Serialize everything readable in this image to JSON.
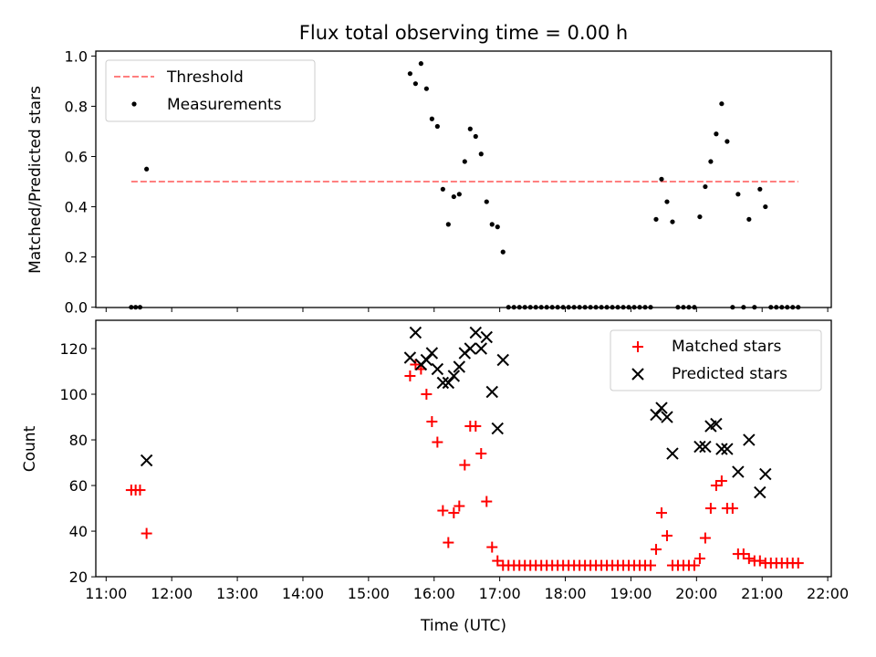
{
  "chart_data": [
    {
      "type": "scatter",
      "title": "Flux total observing time = 0.00 h",
      "xlabel": "",
      "ylabel": "Matched/Predicted stars",
      "xlim": [
        "11:00",
        "22:00"
      ],
      "ylim": [
        0,
        1.0
      ],
      "yticks": [
        "0.0",
        "0.2",
        "0.4",
        "0.6",
        "0.8",
        "1.0"
      ],
      "legend_position": "top-left",
      "threshold": {
        "name": "Threshold",
        "y": 0.5,
        "x_start": "11:23",
        "x_end": "21:33",
        "color": "#ff7f7f",
        "style": "dashed"
      },
      "series": [
        {
          "name": "Measurements",
          "marker": "dot",
          "color": "#000000",
          "points": [
            [
              "11:23",
              0.0
            ],
            [
              "11:27",
              0.0
            ],
            [
              "11:31",
              0.0
            ],
            [
              "11:37",
              0.55
            ],
            [
              "15:38",
              0.93
            ],
            [
              "15:43",
              0.89
            ],
            [
              "15:48",
              0.97
            ],
            [
              "15:53",
              0.87
            ],
            [
              "15:58",
              0.75
            ],
            [
              "16:03",
              0.72
            ],
            [
              "16:08",
              0.47
            ],
            [
              "16:13",
              0.33
            ],
            [
              "16:18",
              0.44
            ],
            [
              "16:23",
              0.45
            ],
            [
              "16:28",
              0.58
            ],
            [
              "16:33",
              0.71
            ],
            [
              "16:38",
              0.68
            ],
            [
              "16:43",
              0.61
            ],
            [
              "16:48",
              0.42
            ],
            [
              "16:53",
              0.33
            ],
            [
              "16:58",
              0.32
            ],
            [
              "17:03",
              0.22
            ],
            [
              "17:08",
              0.0
            ],
            [
              "17:13",
              0.0
            ],
            [
              "17:18",
              0.0
            ],
            [
              "17:23",
              0.0
            ],
            [
              "17:28",
              0.0
            ],
            [
              "17:33",
              0.0
            ],
            [
              "17:38",
              0.0
            ],
            [
              "17:43",
              0.0
            ],
            [
              "17:48",
              0.0
            ],
            [
              "17:53",
              0.0
            ],
            [
              "17:58",
              0.0
            ],
            [
              "18:03",
              0.0
            ],
            [
              "18:08",
              0.0
            ],
            [
              "18:13",
              0.0
            ],
            [
              "18:18",
              0.0
            ],
            [
              "18:23",
              0.0
            ],
            [
              "18:28",
              0.0
            ],
            [
              "18:33",
              0.0
            ],
            [
              "18:38",
              0.0
            ],
            [
              "18:43",
              0.0
            ],
            [
              "18:48",
              0.0
            ],
            [
              "18:53",
              0.0
            ],
            [
              "18:58",
              0.0
            ],
            [
              "19:03",
              0.0
            ],
            [
              "19:08",
              0.0
            ],
            [
              "19:13",
              0.0
            ],
            [
              "19:18",
              0.0
            ],
            [
              "19:23",
              0.35
            ],
            [
              "19:28",
              0.51
            ],
            [
              "19:33",
              0.42
            ],
            [
              "19:38",
              0.34
            ],
            [
              "19:43",
              0.0
            ],
            [
              "19:48",
              0.0
            ],
            [
              "19:53",
              0.0
            ],
            [
              "19:58",
              0.0
            ],
            [
              "20:03",
              0.36
            ],
            [
              "20:08",
              0.48
            ],
            [
              "20:13",
              0.58
            ],
            [
              "20:18",
              0.69
            ],
            [
              "20:23",
              0.81
            ],
            [
              "20:28",
              0.66
            ],
            [
              "20:33",
              0.0
            ],
            [
              "20:38",
              0.45
            ],
            [
              "20:43",
              0.0
            ],
            [
              "20:48",
              0.35
            ],
            [
              "20:53",
              0.0
            ],
            [
              "20:58",
              0.47
            ],
            [
              "21:03",
              0.4
            ],
            [
              "21:08",
              0.0
            ],
            [
              "21:13",
              0.0
            ],
            [
              "21:18",
              0.0
            ],
            [
              "21:23",
              0.0
            ],
            [
              "21:28",
              0.0
            ],
            [
              "21:33",
              0.0
            ]
          ]
        }
      ]
    },
    {
      "type": "scatter",
      "title": "",
      "xlabel": "Time (UTC)",
      "ylabel": "Count",
      "xlim": [
        "11:00",
        "22:00"
      ],
      "ylim": [
        20,
        132
      ],
      "xticks": [
        "11:00",
        "12:00",
        "13:00",
        "14:00",
        "15:00",
        "16:00",
        "17:00",
        "18:00",
        "19:00",
        "20:00",
        "21:00",
        "22:00"
      ],
      "yticks": [
        "20",
        "40",
        "60",
        "80",
        "100",
        "120"
      ],
      "legend_position": "top-right",
      "series": [
        {
          "name": "Matched stars",
          "marker": "plus",
          "color": "#ff0000",
          "points": [
            [
              "11:23",
              58
            ],
            [
              "11:27",
              58
            ],
            [
              "11:31",
              58
            ],
            [
              "11:37",
              39
            ],
            [
              "15:38",
              108
            ],
            [
              "15:43",
              113
            ],
            [
              "15:48",
              111
            ],
            [
              "15:53",
              100
            ],
            [
              "15:58",
              88
            ],
            [
              "16:03",
              79
            ],
            [
              "16:08",
              49
            ],
            [
              "16:13",
              35
            ],
            [
              "16:18",
              48
            ],
            [
              "16:23",
              51
            ],
            [
              "16:28",
              69
            ],
            [
              "16:33",
              86
            ],
            [
              "16:38",
              86
            ],
            [
              "16:43",
              74
            ],
            [
              "16:48",
              53
            ],
            [
              "16:53",
              33
            ],
            [
              "16:58",
              27
            ],
            [
              "17:03",
              25
            ],
            [
              "17:08",
              25
            ],
            [
              "17:13",
              25
            ],
            [
              "17:18",
              25
            ],
            [
              "17:23",
              25
            ],
            [
              "17:28",
              25
            ],
            [
              "17:33",
              25
            ],
            [
              "17:38",
              25
            ],
            [
              "17:43",
              25
            ],
            [
              "17:48",
              25
            ],
            [
              "17:53",
              25
            ],
            [
              "17:58",
              25
            ],
            [
              "18:03",
              25
            ],
            [
              "18:08",
              25
            ],
            [
              "18:13",
              25
            ],
            [
              "18:18",
              25
            ],
            [
              "18:23",
              25
            ],
            [
              "18:28",
              25
            ],
            [
              "18:33",
              25
            ],
            [
              "18:38",
              25
            ],
            [
              "18:43",
              25
            ],
            [
              "18:48",
              25
            ],
            [
              "18:53",
              25
            ],
            [
              "18:58",
              25
            ],
            [
              "19:03",
              25
            ],
            [
              "19:08",
              25
            ],
            [
              "19:13",
              25
            ],
            [
              "19:18",
              25
            ],
            [
              "19:23",
              32
            ],
            [
              "19:28",
              48
            ],
            [
              "19:33",
              38
            ],
            [
              "19:38",
              25
            ],
            [
              "19:43",
              25
            ],
            [
              "19:48",
              25
            ],
            [
              "19:53",
              25
            ],
            [
              "19:58",
              25
            ],
            [
              "20:03",
              28
            ],
            [
              "20:08",
              37
            ],
            [
              "20:13",
              50
            ],
            [
              "20:18",
              60
            ],
            [
              "20:23",
              62
            ],
            [
              "20:28",
              50
            ],
            [
              "20:33",
              50
            ],
            [
              "20:38",
              30
            ],
            [
              "20:43",
              30
            ],
            [
              "20:48",
              28
            ],
            [
              "20:53",
              27
            ],
            [
              "20:58",
              27
            ],
            [
              "21:03",
              26
            ],
            [
              "21:08",
              26
            ],
            [
              "21:13",
              26
            ],
            [
              "21:18",
              26
            ],
            [
              "21:23",
              26
            ],
            [
              "21:28",
              26
            ],
            [
              "21:33",
              26
            ]
          ]
        },
        {
          "name": "Predicted stars",
          "marker": "x",
          "color": "#000000",
          "points": [
            [
              "11:37",
              71
            ],
            [
              "15:38",
              116
            ],
            [
              "15:43",
              127
            ],
            [
              "15:48",
              113
            ],
            [
              "15:53",
              115
            ],
            [
              "15:58",
              118
            ],
            [
              "16:03",
              111
            ],
            [
              "16:08",
              105
            ],
            [
              "16:13",
              105
            ],
            [
              "16:18",
              108
            ],
            [
              "16:23",
              112
            ],
            [
              "16:28",
              118
            ],
            [
              "16:33",
              120
            ],
            [
              "16:38",
              127
            ],
            [
              "16:43",
              120
            ],
            [
              "16:48",
              125
            ],
            [
              "16:53",
              101
            ],
            [
              "16:58",
              85
            ],
            [
              "17:03",
              115
            ],
            [
              "19:23",
              91
            ],
            [
              "19:28",
              94
            ],
            [
              "19:33",
              90
            ],
            [
              "19:38",
              74
            ],
            [
              "20:03",
              77
            ],
            [
              "20:08",
              77
            ],
            [
              "20:13",
              86
            ],
            [
              "20:18",
              87
            ],
            [
              "20:23",
              76
            ],
            [
              "20:28",
              76
            ],
            [
              "20:38",
              66
            ],
            [
              "20:48",
              80
            ],
            [
              "20:58",
              57
            ],
            [
              "21:03",
              65
            ]
          ]
        }
      ]
    }
  ]
}
